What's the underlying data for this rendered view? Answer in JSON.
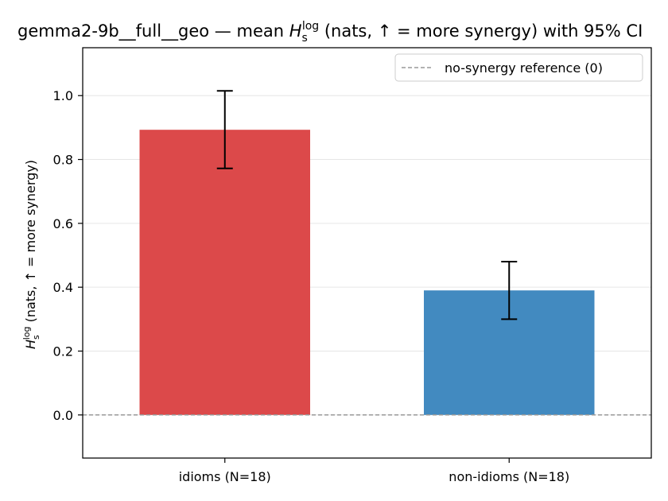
{
  "chart_data": {
    "type": "bar",
    "title_prefix": "gemma2-9b__full__geo — mean ",
    "title_symbol": "H",
    "title_sub": "s",
    "title_sup": "log",
    "title_suffix": " (nats, ↑ = more synergy) with 95% CI",
    "ylabel_symbol": "H",
    "ylabel_sub": "s",
    "ylabel_sup": "log",
    "ylabel_suffix": " (nats, ↑ = more synergy)",
    "categories": [
      "idioms (N=18)",
      "non-idioms (N=18)"
    ],
    "values": [
      0.893,
      0.39
    ],
    "ci_low": [
      0.772,
      0.3
    ],
    "ci_high": [
      1.015,
      0.48
    ],
    "colors": [
      "#dc494a",
      "#428ac0"
    ],
    "ylim": [
      -0.135,
      1.15
    ],
    "yticks": [
      0.0,
      0.2,
      0.4,
      0.6,
      0.8,
      1.0
    ],
    "ytick_labels": [
      "0.0",
      "0.2",
      "0.4",
      "0.6",
      "0.8",
      "1.0"
    ],
    "grid": "horizontal",
    "reference_line": {
      "y": 0,
      "label": "no-synergy reference (0)",
      "color": "#999999"
    },
    "legend_position": "top-right"
  }
}
